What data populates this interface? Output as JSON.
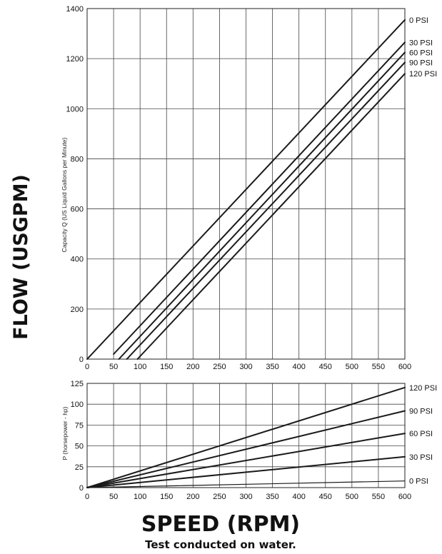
{
  "figure": {
    "flow_label": "FLOW (USGPM)",
    "speed_label": "SPEED (RPM)",
    "note": "Test conducted on water."
  },
  "chart_data": [
    {
      "type": "line",
      "ylabel": "Capacity Q (US Liquid Gallons per Minute)",
      "xlabel": "",
      "xlim": [
        0,
        600
      ],
      "ylim": [
        0,
        1400
      ],
      "xticks": [
        0,
        50,
        100,
        150,
        200,
        250,
        300,
        350,
        400,
        450,
        500,
        550,
        600
      ],
      "yticks": [
        0,
        200,
        400,
        600,
        800,
        1000,
        1200,
        1400
      ],
      "grid": true,
      "legend": "labels at right end of lines",
      "colors": {
        "line": "#1a1a1a",
        "grid": "#444444"
      },
      "series": [
        {
          "name": "0 PSI",
          "points": [
            [
              0,
              0
            ],
            [
              600,
              1355
            ]
          ]
        },
        {
          "name": "30 PSI",
          "points": [
            [
              50,
              20
            ],
            [
              600,
              1265
            ]
          ]
        },
        {
          "name": "60 PSI",
          "points": [
            [
              60,
              0
            ],
            [
              600,
              1225
            ]
          ]
        },
        {
          "name": "90 PSI",
          "points": [
            [
              75,
              0
            ],
            [
              600,
              1185
            ]
          ]
        },
        {
          "name": "120 PSI",
          "points": [
            [
              95,
              0
            ],
            [
              600,
              1140
            ]
          ]
        }
      ]
    },
    {
      "type": "line",
      "ylabel": "P (horsepower - hp)",
      "xlabel": "",
      "xlim": [
        0,
        600
      ],
      "ylim": [
        0,
        125
      ],
      "xticks": [
        0,
        50,
        100,
        150,
        200,
        250,
        300,
        350,
        400,
        450,
        500,
        550,
        600
      ],
      "yticks": [
        0,
        25,
        50,
        75,
        100,
        125
      ],
      "grid": true,
      "legend": "labels at right end of lines",
      "colors": {
        "line": "#1a1a1a",
        "grid": "#444444"
      },
      "series": [
        {
          "name": "120 PSI",
          "points": [
            [
              0,
              0
            ],
            [
              600,
              120
            ]
          ]
        },
        {
          "name": "90 PSI",
          "points": [
            [
              0,
              0
            ],
            [
              600,
              92
            ]
          ]
        },
        {
          "name": "60 PSI",
          "points": [
            [
              0,
              0
            ],
            [
              600,
              65
            ]
          ]
        },
        {
          "name": "30 PSI",
          "points": [
            [
              0,
              0
            ],
            [
              600,
              37
            ]
          ]
        },
        {
          "name": "0 PSI",
          "points": [
            [
              0,
              0
            ],
            [
              600,
              8
            ]
          ]
        }
      ]
    }
  ]
}
